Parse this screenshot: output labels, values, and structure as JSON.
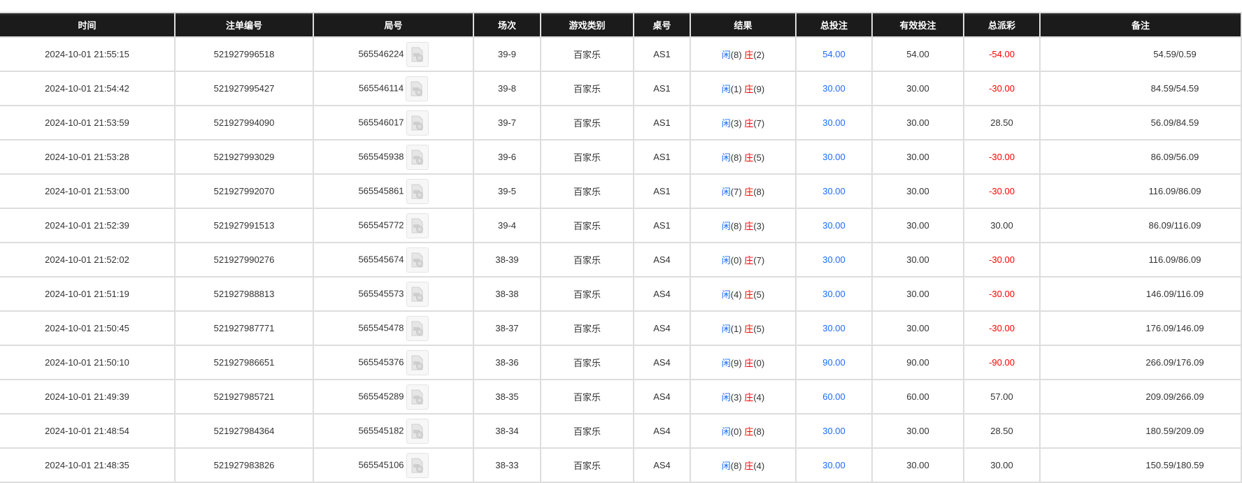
{
  "columns": [
    "时间",
    "注单编号",
    "局号",
    "场次",
    "游戏类别",
    "桌号",
    "结果",
    "总投注",
    "有效投注",
    "总派彩",
    "备注"
  ],
  "colors": {
    "player": "#1a6cff",
    "banker": "#ff0000",
    "bet": "#1a6cff",
    "negative_payout": "#ff0000",
    "header_bg": "#1b1b1b"
  },
  "rows": [
    {
      "time": "2024-10-01 21:55:15",
      "order": "521927996518",
      "round": "565546224",
      "session": "39-9",
      "game": "百家乐",
      "table": "AS1",
      "player": "闲",
      "player_pts": "(8)",
      "banker": "庄",
      "banker_pts": "(2)",
      "bet": "54.00",
      "valid": "54.00",
      "payout": "-54.00",
      "neg": true,
      "note": "54.59/0.59"
    },
    {
      "time": "2024-10-01 21:54:42",
      "order": "521927995427",
      "round": "565546114",
      "session": "39-8",
      "game": "百家乐",
      "table": "AS1",
      "player": "闲",
      "player_pts": "(1)",
      "banker": "庄",
      "banker_pts": "(9)",
      "bet": "30.00",
      "valid": "30.00",
      "payout": "-30.00",
      "neg": true,
      "note": "84.59/54.59"
    },
    {
      "time": "2024-10-01 21:53:59",
      "order": "521927994090",
      "round": "565546017",
      "session": "39-7",
      "game": "百家乐",
      "table": "AS1",
      "player": "闲",
      "player_pts": "(3)",
      "banker": "庄",
      "banker_pts": "(7)",
      "bet": "30.00",
      "valid": "30.00",
      "payout": "28.50",
      "neg": false,
      "note": "56.09/84.59"
    },
    {
      "time": "2024-10-01 21:53:28",
      "order": "521927993029",
      "round": "565545938",
      "session": "39-6",
      "game": "百家乐",
      "table": "AS1",
      "player": "闲",
      "player_pts": "(8)",
      "banker": "庄",
      "banker_pts": "(5)",
      "bet": "30.00",
      "valid": "30.00",
      "payout": "-30.00",
      "neg": true,
      "note": "86.09/56.09"
    },
    {
      "time": "2024-10-01 21:53:00",
      "order": "521927992070",
      "round": "565545861",
      "session": "39-5",
      "game": "百家乐",
      "table": "AS1",
      "player": "闲",
      "player_pts": "(7)",
      "banker": "庄",
      "banker_pts": "(8)",
      "bet": "30.00",
      "valid": "30.00",
      "payout": "-30.00",
      "neg": true,
      "note": "116.09/86.09"
    },
    {
      "time": "2024-10-01 21:52:39",
      "order": "521927991513",
      "round": "565545772",
      "session": "39-4",
      "game": "百家乐",
      "table": "AS1",
      "player": "闲",
      "player_pts": "(8)",
      "banker": "庄",
      "banker_pts": "(3)",
      "bet": "30.00",
      "valid": "30.00",
      "payout": "30.00",
      "neg": false,
      "note": "86.09/116.09"
    },
    {
      "time": "2024-10-01 21:52:02",
      "order": "521927990276",
      "round": "565545674",
      "session": "38-39",
      "game": "百家乐",
      "table": "AS4",
      "player": "闲",
      "player_pts": "(0)",
      "banker": "庄",
      "banker_pts": "(7)",
      "bet": "30.00",
      "valid": "30.00",
      "payout": "-30.00",
      "neg": true,
      "note": "116.09/86.09"
    },
    {
      "time": "2024-10-01 21:51:19",
      "order": "521927988813",
      "round": "565545573",
      "session": "38-38",
      "game": "百家乐",
      "table": "AS4",
      "player": "闲",
      "player_pts": "(4)",
      "banker": "庄",
      "banker_pts": "(5)",
      "bet": "30.00",
      "valid": "30.00",
      "payout": "-30.00",
      "neg": true,
      "note": "146.09/116.09"
    },
    {
      "time": "2024-10-01 21:50:45",
      "order": "521927987771",
      "round": "565545478",
      "session": "38-37",
      "game": "百家乐",
      "table": "AS4",
      "player": "闲",
      "player_pts": "(1)",
      "banker": "庄",
      "banker_pts": "(5)",
      "bet": "30.00",
      "valid": "30.00",
      "payout": "-30.00",
      "neg": true,
      "note": "176.09/146.09"
    },
    {
      "time": "2024-10-01 21:50:10",
      "order": "521927986651",
      "round": "565545376",
      "session": "38-36",
      "game": "百家乐",
      "table": "AS4",
      "player": "闲",
      "player_pts": "(9)",
      "banker": "庄",
      "banker_pts": "(0)",
      "bet": "90.00",
      "valid": "90.00",
      "payout": "-90.00",
      "neg": true,
      "note": "266.09/176.09"
    },
    {
      "time": "2024-10-01 21:49:39",
      "order": "521927985721",
      "round": "565545289",
      "session": "38-35",
      "game": "百家乐",
      "table": "AS4",
      "player": "闲",
      "player_pts": "(3)",
      "banker": "庄",
      "banker_pts": "(4)",
      "bet": "60.00",
      "valid": "60.00",
      "payout": "57.00",
      "neg": false,
      "note": "209.09/266.09"
    },
    {
      "time": "2024-10-01 21:48:54",
      "order": "521927984364",
      "round": "565545182",
      "session": "38-34",
      "game": "百家乐",
      "table": "AS4",
      "player": "闲",
      "player_pts": "(0)",
      "banker": "庄",
      "banker_pts": "(8)",
      "bet": "30.00",
      "valid": "30.00",
      "payout": "28.50",
      "neg": false,
      "note": "180.59/209.09"
    },
    {
      "time": "2024-10-01 21:48:35",
      "order": "521927983826",
      "round": "565545106",
      "session": "38-33",
      "game": "百家乐",
      "table": "AS4",
      "player": "闲",
      "player_pts": "(8)",
      "banker": "庄",
      "banker_pts": "(4)",
      "bet": "30.00",
      "valid": "30.00",
      "payout": "30.00",
      "neg": false,
      "note": "150.59/180.59"
    }
  ]
}
